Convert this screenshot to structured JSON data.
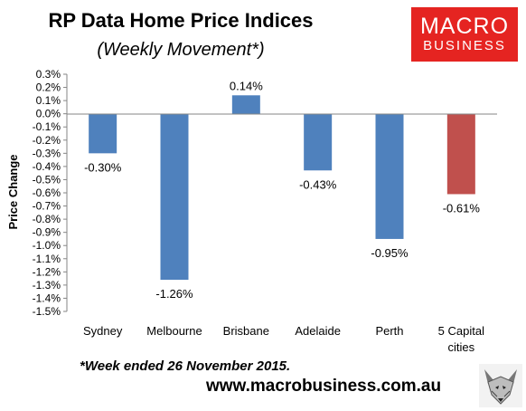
{
  "header": {
    "title": "RP Data Home Price Indices",
    "subtitle": "(Weekly Movement*)"
  },
  "brand": {
    "logo_line1": "MACRO",
    "logo_line2": "BUSINESS",
    "logo_color": "#e52421",
    "website": "www.macrobusiness.com.au",
    "mascot_icon": "fox-icon"
  },
  "footnote": "*Week ended 26 November 2015.",
  "colors": {
    "bar_default": "#4f81bd",
    "bar_highlight": "#c0504d"
  },
  "chart_data": {
    "type": "bar",
    "ylabel": "Price Change",
    "ylim": [
      -0.015,
      0.003
    ],
    "y_tick_step": 0.001,
    "y_tick_labels": [
      "0.3%",
      "0.2%",
      "0.1%",
      "0.0%",
      "-0.1%",
      "-0.2%",
      "-0.3%",
      "-0.4%",
      "-0.5%",
      "-0.6%",
      "-0.7%",
      "-0.8%",
      "-0.9%",
      "-1.0%",
      "-1.1%",
      "-1.2%",
      "-1.3%",
      "-1.4%",
      "-1.5%"
    ],
    "categories": [
      [
        "Sydney"
      ],
      [
        "Melbourne"
      ],
      [
        "Brisbane"
      ],
      [
        "Adelaide"
      ],
      [
        "Perth"
      ],
      [
        "5 Capital",
        "cities"
      ]
    ],
    "values": [
      -0.003,
      -0.0126,
      0.0014,
      -0.0043,
      -0.0095,
      -0.0061
    ],
    "data_labels": [
      "-0.30%",
      "-1.26%",
      "0.14%",
      "-0.43%",
      "-0.95%",
      "-0.61%"
    ],
    "highlight_index": 5,
    "grid": false,
    "legend": "none"
  }
}
